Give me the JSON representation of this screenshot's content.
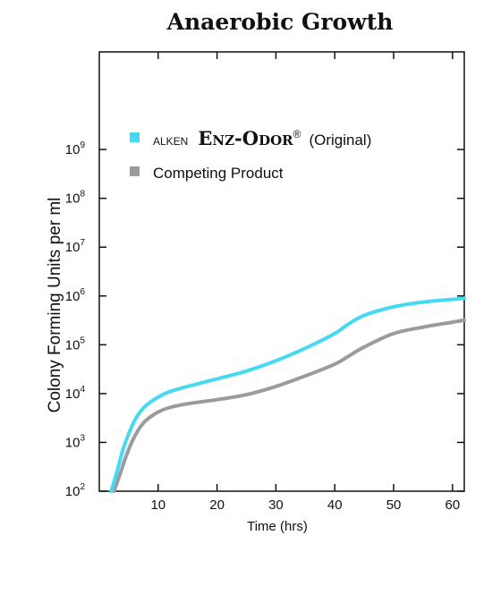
{
  "chart_data": {
    "type": "line",
    "title": "Anaerobic Growth",
    "xlabel": "Time (hrs)",
    "ylabel": "Colony Forming Units per ml",
    "xlim": [
      0,
      62
    ],
    "ylim_log10": [
      2,
      11
    ],
    "y_scale": "log",
    "x_ticks": [
      10,
      20,
      30,
      40,
      50,
      60
    ],
    "x_tick_labels": [
      "10",
      "20",
      "30",
      "40",
      "50",
      "60"
    ],
    "y_ticks_log10": [
      2,
      3,
      4,
      5,
      6,
      7,
      8,
      9
    ],
    "y_tick_base": "10",
    "y_tick_exponents": [
      "2",
      "3",
      "4",
      "5",
      "6",
      "7",
      "8",
      "9"
    ],
    "legend_position": "upper-left",
    "grid": false,
    "series": [
      {
        "name": "ALKEN ENZ-ODOR® (Original)",
        "legend_parts": {
          "prefix": "ALKEN",
          "brand": [
            "E",
            "NZ",
            "-",
            "O",
            "DOR"
          ],
          "registered": "®",
          "suffix": "(Original)"
        },
        "color": "#45d9f2",
        "x": [
          2,
          3,
          4,
          5,
          6,
          7,
          8,
          10,
          12,
          15,
          20,
          25,
          30,
          35,
          40,
          42,
          45,
          50,
          55,
          60,
          62
        ],
        "y": [
          100,
          250,
          700,
          1500,
          2800,
          4300,
          5800,
          8500,
          11000,
          14000,
          20000,
          29000,
          47000,
          85000,
          170000,
          250000,
          400000,
          600000,
          750000,
          850000,
          900000
        ]
      },
      {
        "name": "Competing Product",
        "color": "#9b9b9b",
        "x": [
          2.5,
          3.5,
          4.5,
          5.5,
          6.5,
          7.5,
          8.5,
          10,
          12,
          15,
          20,
          25,
          30,
          35,
          40,
          42,
          45,
          50,
          55,
          60,
          62
        ],
        "y": [
          100,
          220,
          500,
          1000,
          1700,
          2500,
          3200,
          4200,
          5200,
          6200,
          7500,
          9500,
          14000,
          23000,
          40000,
          55000,
          90000,
          170000,
          230000,
          290000,
          320000
        ]
      }
    ]
  }
}
